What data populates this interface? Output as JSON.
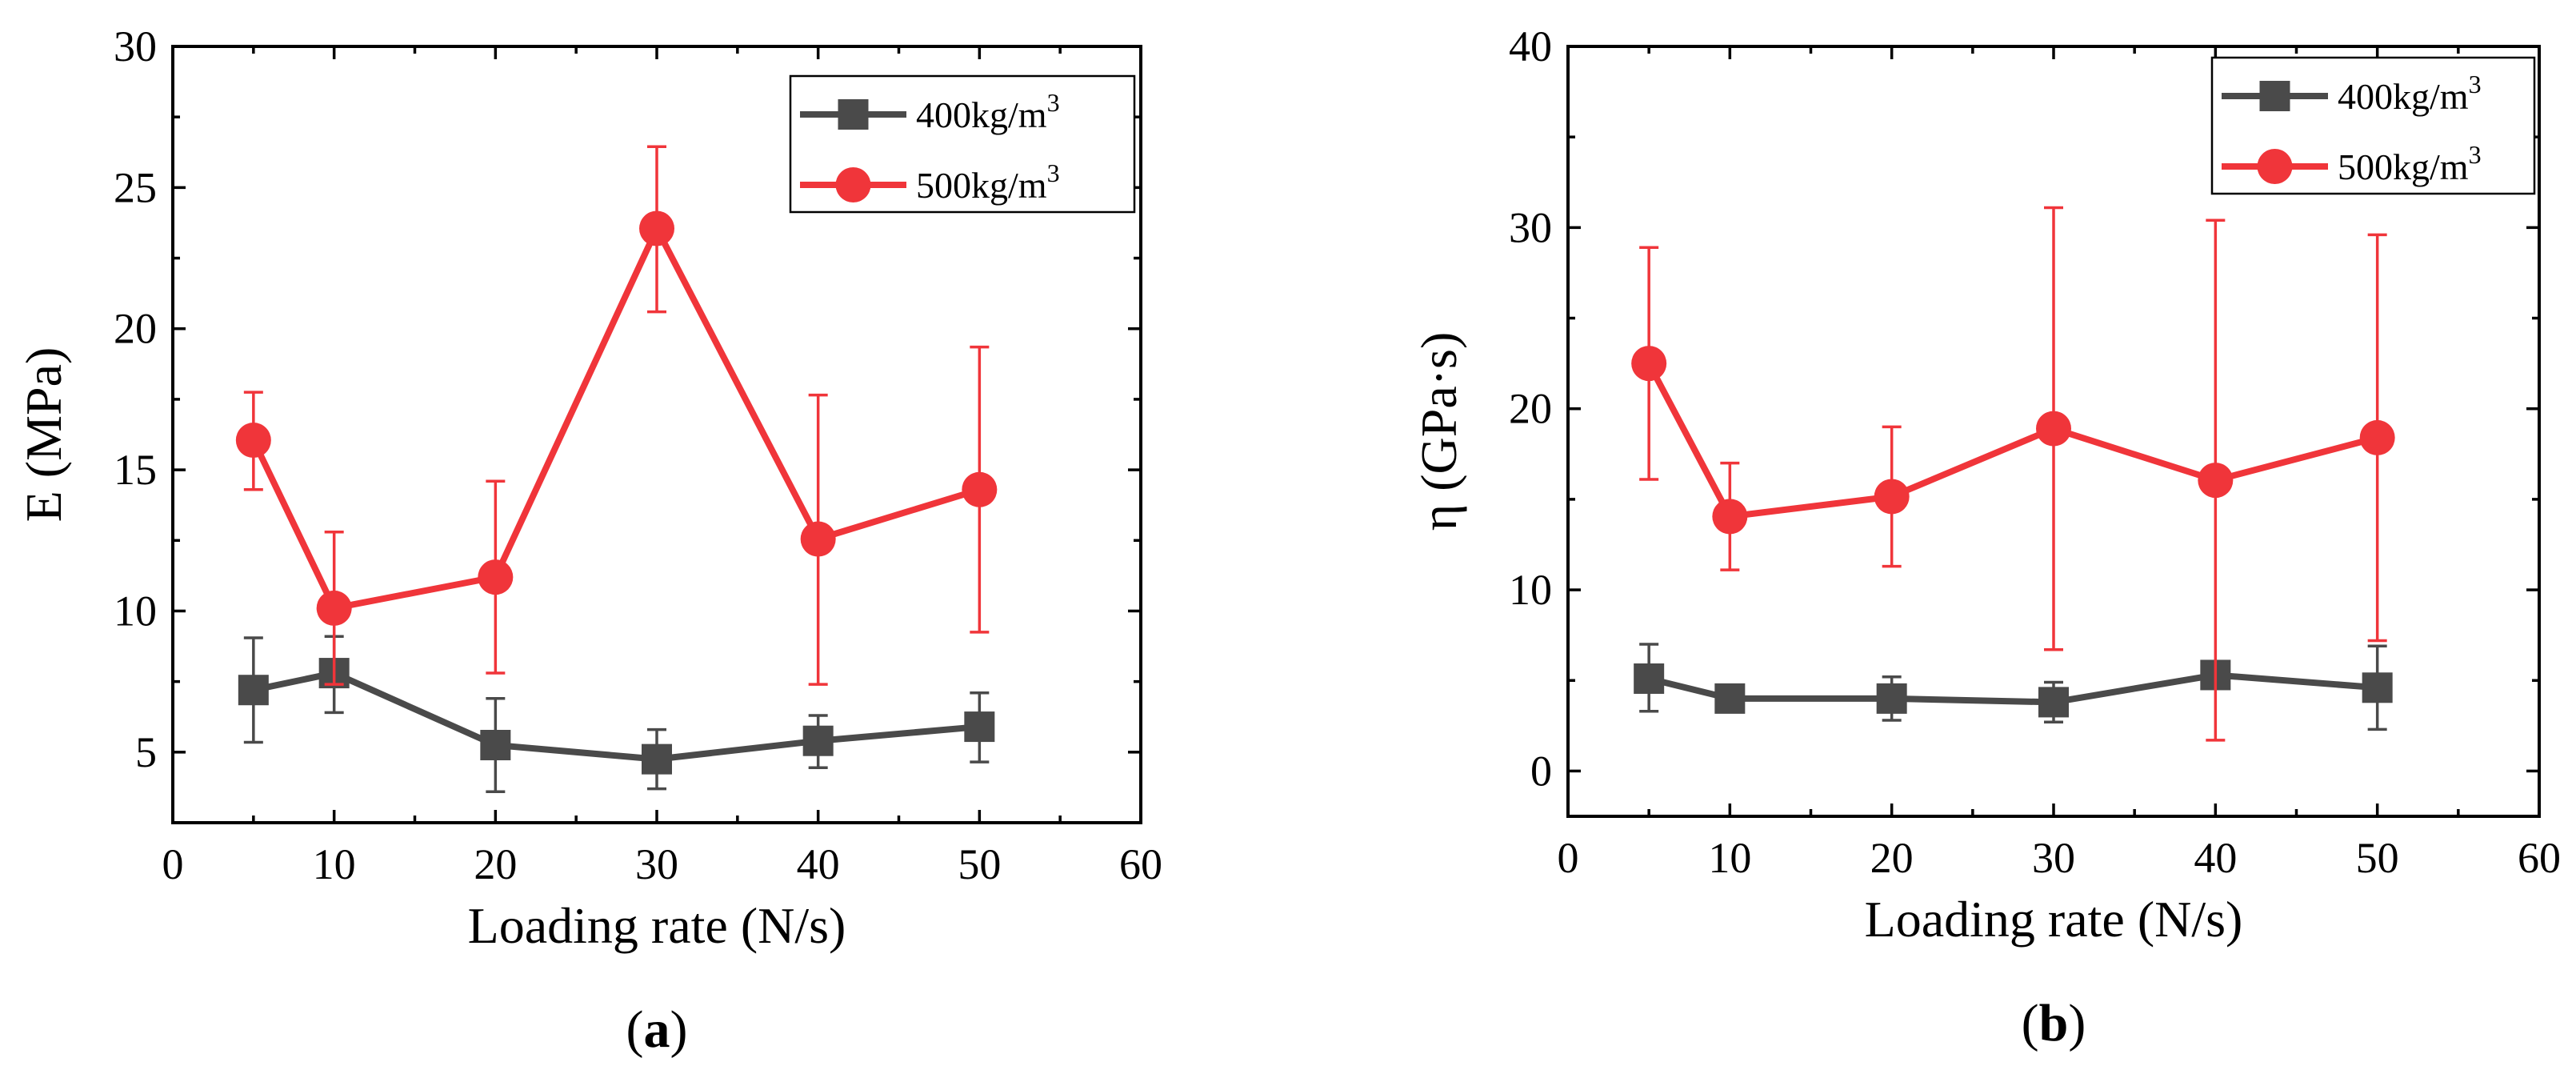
{
  "chart_data": [
    {
      "type": "line",
      "panel_label": "a",
      "xlabel": "Loading rate (N/s)",
      "ylabel": "E (MPa)",
      "xlim": [
        0,
        60
      ],
      "ylim": [
        2.5,
        30
      ],
      "xticks": [
        0,
        10,
        20,
        30,
        40,
        50,
        60
      ],
      "yticks": [
        5,
        10,
        15,
        20,
        25,
        30
      ],
      "x": [
        5,
        10,
        20,
        30,
        40,
        50
      ],
      "legend_position": "top-right",
      "series": [
        {
          "name": "400kg/m",
          "name_sup": "3",
          "marker": "square",
          "color": "#4a4a4a",
          "values": [
            7.2,
            7.8,
            5.25,
            4.75,
            5.4,
            5.9
          ],
          "err_upper": [
            9.05,
            9.1,
            6.9,
            5.8,
            6.3,
            7.1
          ],
          "err_lower": [
            5.35,
            6.4,
            3.6,
            3.7,
            4.45,
            4.65
          ]
        },
        {
          "name": "500kg/m",
          "name_sup": "3",
          "marker": "circle",
          "color": "#f0353a",
          "values": [
            16.05,
            10.1,
            11.2,
            23.55,
            12.55,
            14.3
          ],
          "err_upper": [
            17.75,
            12.8,
            14.6,
            26.45,
            17.65,
            19.35
          ],
          "err_lower": [
            14.3,
            7.4,
            7.8,
            20.6,
            7.4,
            9.25
          ]
        }
      ]
    },
    {
      "type": "line",
      "panel_label": "b",
      "xlabel": "Loading rate (N/s)",
      "ylabel": "η (GPa·s)",
      "xlim": [
        0,
        60
      ],
      "ylim": [
        -2.5,
        40
      ],
      "xticks": [
        0,
        10,
        20,
        30,
        40,
        50,
        60
      ],
      "yticks": [
        0,
        10,
        20,
        30,
        40
      ],
      "x": [
        5,
        10,
        20,
        30,
        40,
        50
      ],
      "legend_position": "top-right",
      "series": [
        {
          "name": "400kg/m",
          "name_sup": "3",
          "marker": "square",
          "color": "#4a4a4a",
          "values": [
            5.1,
            4.0,
            4.0,
            3.8,
            5.3,
            4.6
          ],
          "err_upper": [
            7.0,
            4.5,
            5.2,
            4.9,
            5.7,
            6.9
          ],
          "err_lower": [
            3.3,
            3.5,
            2.8,
            2.7,
            4.9,
            2.3
          ]
        },
        {
          "name": "500kg/m",
          "name_sup": "3",
          "marker": "circle",
          "color": "#f0353a",
          "values": [
            22.5,
            14.05,
            15.15,
            18.9,
            16.05,
            18.4
          ],
          "err_upper": [
            28.9,
            17.0,
            19.0,
            31.1,
            30.4,
            29.6
          ],
          "err_lower": [
            16.1,
            11.1,
            11.3,
            6.7,
            1.7,
            7.2
          ]
        }
      ]
    }
  ]
}
